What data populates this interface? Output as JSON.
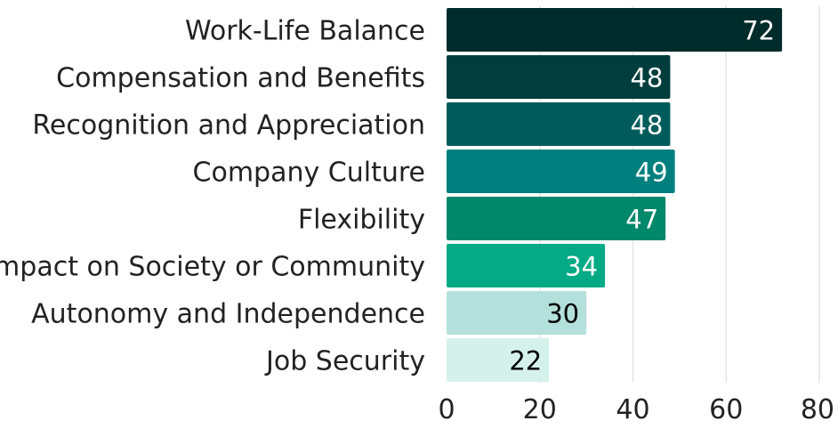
{
  "chart_data": {
    "type": "bar",
    "orientation": "horizontal",
    "categories": [
      "Work-Life Balance",
      "Compensation and Benefits",
      "Recognition and Appreciation",
      "Company Culture",
      "Flexibility",
      "Impact on Society or Community",
      "Autonomy and Independence",
      "Job Security"
    ],
    "values": [
      72,
      48,
      48,
      49,
      47,
      34,
      30,
      22
    ],
    "bar_colors": [
      "#002b2b",
      "#013d3d",
      "#005c5c",
      "#007f7f",
      "#00886a",
      "#04aa85",
      "#b3e0da",
      "#d5f1ec"
    ],
    "label_colors": [
      "#ffffff",
      "#ffffff",
      "#ffffff",
      "#ffffff",
      "#ffffff",
      "#ffffff",
      "#000000",
      "#000000"
    ],
    "xlim": [
      0,
      80
    ],
    "xticks": [
      0,
      20,
      40,
      60,
      80
    ],
    "grid": true,
    "title": "",
    "xlabel": "",
    "ylabel": ""
  }
}
